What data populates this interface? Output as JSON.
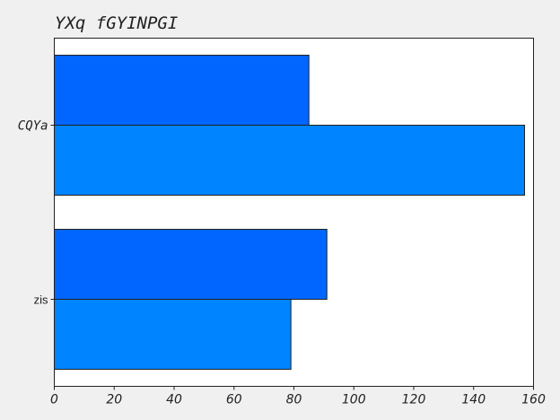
{
  "chart_data": {
    "type": "bar",
    "orientation": "horizontal",
    "title": "YXq fGYINPGI",
    "categories": [
      "CQYa",
      "zis"
    ],
    "series": [
      {
        "values": [
          85,
          91
        ],
        "color": "#0066ff"
      },
      {
        "values": [
          157,
          79
        ],
        "color": "#0084ff"
      }
    ],
    "xlim": [
      0,
      160
    ],
    "x_ticks": [
      0,
      20,
      40,
      60,
      80,
      100,
      120,
      140,
      160
    ],
    "xlabel": "",
    "ylabel": "",
    "grid": false,
    "legend": "none",
    "background_color": "#f0f0f0",
    "plot_background_color": "#ffffff"
  }
}
